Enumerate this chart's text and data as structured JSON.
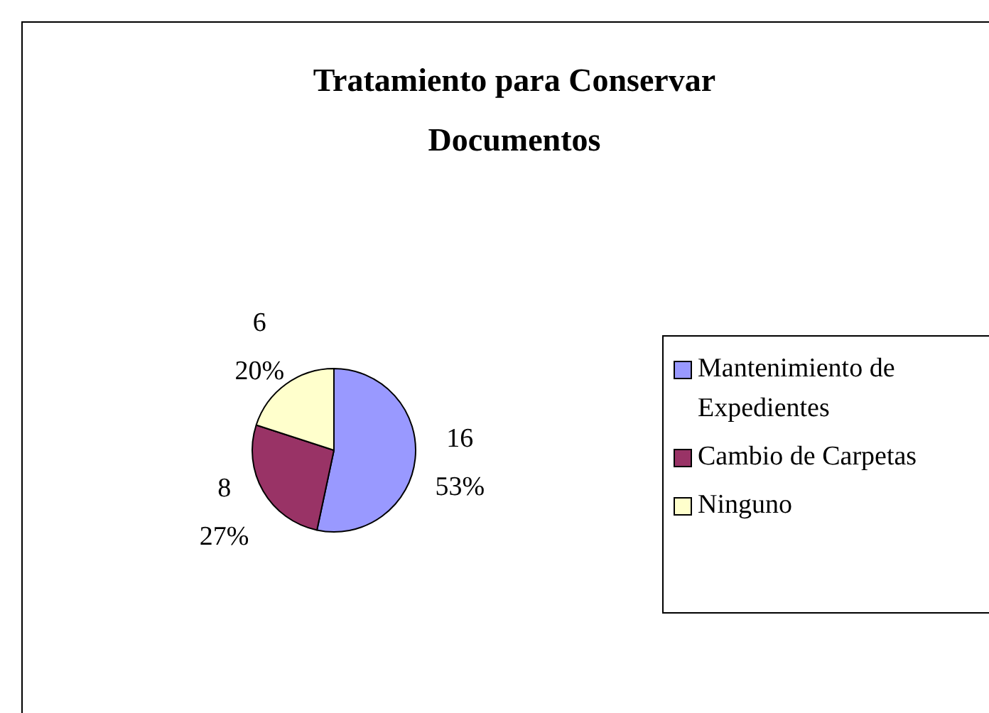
{
  "chart_data": {
    "type": "pie",
    "title": "Tratamiento para Conservar Documentos",
    "categories": [
      "Mantenimiento de Expedientes",
      "Cambio de Carpetas",
      "Ninguno"
    ],
    "values": [
      16,
      8,
      6
    ],
    "colors": [
      "#9999ff",
      "#993366",
      "#ffffcc"
    ],
    "value_labels": [
      "16\n53%",
      "8\n27%",
      "6\n20%"
    ],
    "legend": "right"
  }
}
